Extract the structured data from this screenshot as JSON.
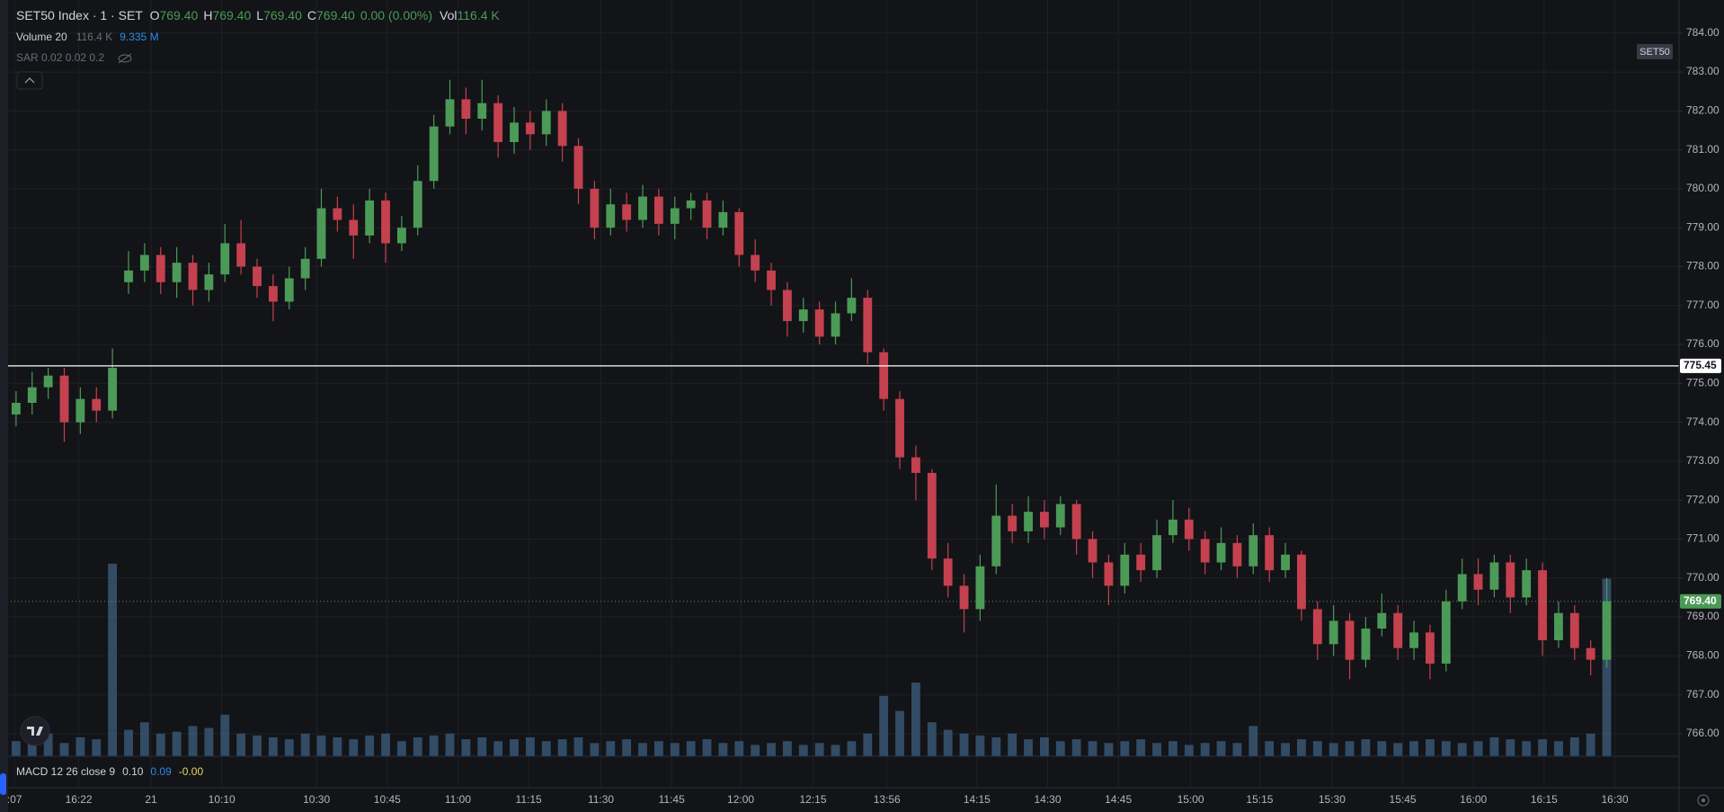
{
  "header": {
    "title": "SET50 Index · 1 · SET",
    "ohlc": [
      {
        "key": "O",
        "value": "769.40"
      },
      {
        "key": "H",
        "value": "769.40"
      },
      {
        "key": "L",
        "value": "769.40"
      },
      {
        "key": "C",
        "value": "769.40"
      }
    ],
    "change": "0.00 (0.00%)",
    "vol_key": "Vol",
    "vol_value": "116.4 K"
  },
  "indicators": {
    "volume": {
      "name": "Volume 20",
      "value": "116.4 K",
      "ma": "9.335 M"
    },
    "sar": "SAR 0.02 0.02 0.2",
    "macd": {
      "name": "MACD 12 26 close 9",
      "values": [
        "0.10",
        "0.09",
        "-0.00"
      ]
    }
  },
  "chart_data": {
    "type": "candlestick",
    "symbol_label": "SET50",
    "up_color": "#4c9a57",
    "down_color": "#c4414f",
    "volume_color": "#3d5f80",
    "grid": true,
    "x": [
      1,
      2,
      3,
      4,
      5,
      6,
      7,
      8,
      9,
      10,
      11,
      12,
      13,
      14,
      15,
      16,
      17,
      18,
      19,
      20,
      21,
      22,
      23,
      24,
      25,
      26,
      27,
      28,
      29,
      30,
      31,
      32,
      33,
      34,
      35,
      36,
      37,
      38,
      39,
      40,
      41,
      42,
      43,
      44,
      45,
      46,
      47,
      48,
      49,
      50,
      51,
      52,
      53,
      54,
      55,
      56,
      57,
      58,
      59,
      60,
      61,
      62,
      63,
      64,
      65,
      66,
      67,
      68,
      69,
      70,
      71,
      72,
      73,
      74,
      75,
      76,
      77,
      78,
      79,
      80,
      81,
      82,
      83,
      84,
      85,
      86,
      87,
      88,
      89,
      90,
      91,
      92,
      93,
      94,
      95,
      96,
      97,
      98,
      99,
      100
    ],
    "open": [
      774.2,
      774.5,
      774.9,
      775.2,
      774.0,
      774.6,
      774.3,
      777.6,
      777.9,
      778.3,
      777.6,
      778.1,
      777.4,
      777.8,
      778.6,
      778.0,
      777.5,
      777.1,
      777.7,
      778.2,
      779.5,
      779.2,
      778.8,
      779.7,
      778.6,
      779.0,
      780.2,
      781.6,
      782.3,
      781.8,
      782.2,
      781.2,
      781.7,
      781.4,
      782.0,
      781.1,
      780.0,
      779.0,
      779.6,
      779.2,
      779.8,
      779.1,
      779.5,
      779.7,
      779.0,
      779.4,
      778.3,
      777.9,
      777.4,
      776.6,
      776.9,
      776.2,
      776.8,
      777.2,
      775.8,
      774.6,
      773.1,
      772.7,
      770.5,
      769.8,
      769.2,
      770.3,
      771.6,
      771.2,
      771.7,
      771.3,
      771.9,
      771.0,
      770.4,
      769.8,
      770.6,
      770.2,
      771.1,
      771.5,
      771.0,
      770.4,
      770.9,
      770.3,
      771.1,
      770.2,
      770.6,
      769.2,
      768.3,
      768.9,
      767.9,
      768.7,
      769.1,
      768.2,
      768.6,
      767.8,
      769.4,
      770.1,
      769.7,
      770.4,
      769.5,
      770.2,
      768.4,
      769.1,
      768.2,
      767.9
    ],
    "high": [
      774.8,
      775.3,
      775.4,
      775.4,
      774.9,
      774.9,
      775.9,
      778.4,
      778.6,
      778.5,
      778.5,
      778.3,
      778.1,
      779.1,
      779.2,
      778.2,
      777.8,
      778.0,
      778.5,
      780.0,
      779.8,
      779.6,
      780.0,
      779.9,
      779.3,
      780.6,
      781.9,
      782.8,
      782.6,
      782.8,
      782.4,
      782.1,
      782.0,
      782.3,
      782.2,
      781.3,
      780.2,
      780.0,
      779.9,
      780.1,
      780.0,
      779.8,
      779.9,
      779.9,
      779.7,
      779.5,
      778.7,
      778.1,
      777.6,
      777.2,
      777.1,
      777.1,
      777.7,
      777.4,
      775.9,
      774.8,
      773.4,
      772.8,
      770.9,
      770.1,
      770.6,
      772.4,
      771.9,
      772.1,
      772.0,
      772.1,
      772.0,
      771.2,
      770.6,
      770.9,
      770.9,
      771.5,
      772.0,
      771.8,
      771.2,
      771.3,
      771.1,
      771.4,
      771.3,
      770.9,
      770.7,
      769.4,
      769.3,
      769.1,
      769.0,
      769.6,
      769.3,
      768.9,
      768.8,
      769.7,
      770.5,
      770.5,
      770.6,
      770.6,
      770.5,
      770.4,
      769.4,
      769.3,
      768.4,
      770.0
    ],
    "low": [
      773.9,
      774.2,
      774.6,
      773.5,
      773.7,
      774.0,
      774.1,
      777.3,
      777.6,
      777.3,
      777.2,
      777.0,
      777.1,
      777.6,
      777.8,
      777.2,
      776.6,
      776.9,
      777.4,
      778.0,
      778.9,
      778.2,
      778.6,
      778.1,
      778.4,
      778.8,
      780.0,
      781.4,
      781.4,
      781.5,
      780.8,
      780.9,
      781.0,
      781.1,
      780.7,
      779.6,
      778.7,
      778.8,
      778.9,
      779.0,
      778.8,
      778.7,
      779.2,
      778.7,
      778.8,
      778.0,
      777.6,
      777.0,
      776.2,
      776.3,
      776.0,
      776.0,
      776.6,
      775.5,
      774.3,
      772.8,
      772.0,
      770.2,
      769.5,
      768.6,
      768.9,
      770.1,
      770.9,
      770.9,
      771.0,
      771.1,
      770.6,
      770.0,
      769.3,
      769.6,
      769.9,
      770.0,
      770.9,
      770.7,
      770.1,
      770.2,
      770.0,
      770.1,
      769.9,
      770.0,
      768.9,
      767.9,
      768.0,
      767.4,
      767.7,
      768.5,
      767.9,
      767.9,
      767.4,
      767.6,
      769.2,
      769.3,
      769.5,
      769.1,
      769.3,
      768.0,
      768.2,
      767.9,
      767.5,
      767.7
    ],
    "close": [
      774.5,
      774.9,
      775.2,
      774.0,
      774.6,
      774.3,
      775.4,
      777.9,
      778.3,
      777.6,
      778.1,
      777.4,
      777.8,
      778.6,
      778.0,
      777.5,
      777.1,
      777.7,
      778.2,
      779.5,
      779.2,
      778.8,
      779.7,
      778.6,
      779.0,
      780.2,
      781.6,
      782.3,
      781.8,
      782.2,
      781.2,
      781.7,
      781.4,
      782.0,
      781.1,
      780.0,
      779.0,
      779.6,
      779.2,
      779.8,
      779.1,
      779.5,
      779.7,
      779.0,
      779.4,
      778.3,
      777.9,
      777.4,
      776.6,
      776.9,
      776.2,
      776.8,
      777.2,
      775.8,
      774.6,
      773.1,
      772.7,
      770.5,
      769.8,
      769.2,
      770.3,
      771.6,
      771.2,
      771.7,
      771.3,
      771.9,
      771.0,
      770.4,
      769.8,
      770.6,
      770.2,
      771.1,
      771.5,
      771.0,
      770.4,
      770.9,
      770.3,
      771.1,
      770.2,
      770.6,
      769.2,
      768.3,
      768.9,
      767.9,
      768.7,
      769.1,
      768.2,
      768.6,
      767.8,
      769.4,
      770.1,
      769.7,
      770.4,
      769.5,
      770.2,
      768.4,
      769.1,
      768.2,
      767.9,
      769.4
    ],
    "volume": [
      40,
      55,
      60,
      35,
      50,
      45,
      510,
      70,
      90,
      60,
      65,
      80,
      75,
      110,
      60,
      55,
      50,
      45,
      60,
      55,
      50,
      45,
      55,
      60,
      40,
      50,
      55,
      60,
      45,
      50,
      40,
      45,
      50,
      40,
      45,
      50,
      35,
      40,
      45,
      35,
      40,
      35,
      40,
      45,
      35,
      40,
      30,
      35,
      40,
      30,
      35,
      30,
      40,
      60,
      160,
      120,
      195,
      90,
      70,
      60,
      55,
      50,
      60,
      45,
      50,
      40,
      45,
      40,
      35,
      40,
      45,
      35,
      40,
      30,
      35,
      40,
      35,
      80,
      40,
      35,
      45,
      40,
      35,
      40,
      45,
      40,
      35,
      40,
      45,
      40,
      35,
      40,
      50,
      45,
      40,
      45,
      40,
      50,
      60,
      470
    ],
    "xlim": [
      0,
      104.5
    ],
    "xticks": [
      {
        "value": 0.9,
        "label": ":07"
      },
      {
        "value": 4.9,
        "label": "16:22"
      },
      {
        "value": 9.4,
        "label": "21"
      },
      {
        "value": 13.8,
        "label": "10:10"
      },
      {
        "value": 19.7,
        "label": "10:30"
      },
      {
        "value": 24.1,
        "label": "10:45"
      },
      {
        "value": 28.5,
        "label": "11:00"
      },
      {
        "value": 32.9,
        "label": "11:15"
      },
      {
        "value": 37.4,
        "label": "11:30"
      },
      {
        "value": 41.8,
        "label": "11:45"
      },
      {
        "value": 46.1,
        "label": "12:00"
      },
      {
        "value": 50.6,
        "label": "12:15"
      },
      {
        "value": 55.2,
        "label": "13:56"
      },
      {
        "value": 60.8,
        "label": "14:15"
      },
      {
        "value": 65.2,
        "label": "14:30"
      },
      {
        "value": 69.6,
        "label": "14:45"
      },
      {
        "value": 74.1,
        "label": "15:00"
      },
      {
        "value": 78.4,
        "label": "15:15"
      },
      {
        "value": 82.9,
        "label": "15:30"
      },
      {
        "value": 87.3,
        "label": "15:45"
      },
      {
        "value": 91.7,
        "label": "16:00"
      },
      {
        "value": 96.1,
        "label": "16:15"
      },
      {
        "value": 100.5,
        "label": "16:30"
      }
    ],
    "ylim": [
      765.42,
      784.85
    ],
    "yticks": [
      {
        "value": 766,
        "label": "766.00"
      },
      {
        "value": 767,
        "label": "767.00"
      },
      {
        "value": 768,
        "label": "768.00"
      },
      {
        "value": 769,
        "label": "769.00"
      },
      {
        "value": 770,
        "label": "770.00"
      },
      {
        "value": 771,
        "label": "771.00"
      },
      {
        "value": 772,
        "label": "772.00"
      },
      {
        "value": 773,
        "label": "773.00"
      },
      {
        "value": 774,
        "label": "774.00"
      },
      {
        "value": 775,
        "label": "775.00"
      },
      {
        "value": 776,
        "label": "776.00"
      },
      {
        "value": 777,
        "label": "777.00"
      },
      {
        "value": 778,
        "label": "778.00"
      },
      {
        "value": 779,
        "label": "779.00"
      },
      {
        "value": 780,
        "label": "780.00"
      },
      {
        "value": 781,
        "label": "781.00"
      },
      {
        "value": 782,
        "label": "782.00"
      },
      {
        "value": 783,
        "label": "783.00"
      },
      {
        "value": 784,
        "label": "784.00"
      }
    ],
    "price_lines": [
      775.45,
      {
        "value": 769.4,
        "label": "769.40"
      }
    ],
    "price_line_colors": [
      "#ffffff",
      "#4c9a57"
    ]
  }
}
